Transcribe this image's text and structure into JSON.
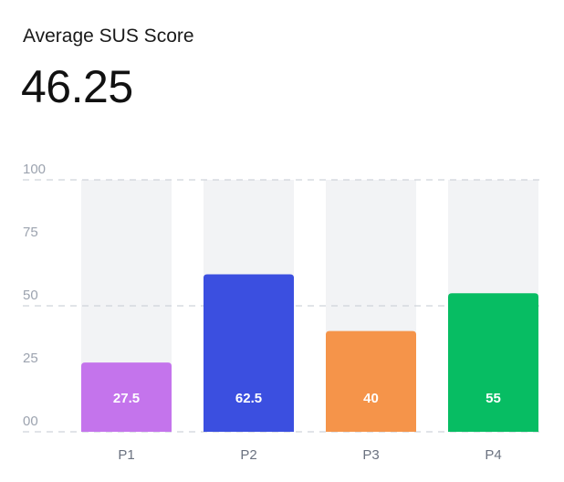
{
  "header": {
    "title": "Average SUS Score",
    "value": "46.25"
  },
  "chart_data": {
    "type": "bar",
    "categories": [
      "P1",
      "P2",
      "P3",
      "P4"
    ],
    "values": [
      27.5,
      62.5,
      40,
      55
    ],
    "value_labels": [
      "27.5",
      "62.5",
      "40",
      "55"
    ],
    "colors": [
      "#c474ec",
      "#3b4fe0",
      "#f5944a",
      "#07bd63"
    ],
    "background_bar_color": "#f2f3f5",
    "ylim": [
      0,
      100
    ],
    "yticks": [
      0,
      25,
      50,
      75,
      100
    ],
    "ytick_labels": [
      "00",
      "25",
      "50",
      "75",
      "100"
    ],
    "dashed_gridlines_at": [
      0,
      50,
      100
    ],
    "title": "",
    "xlabel": "",
    "ylabel": ""
  }
}
